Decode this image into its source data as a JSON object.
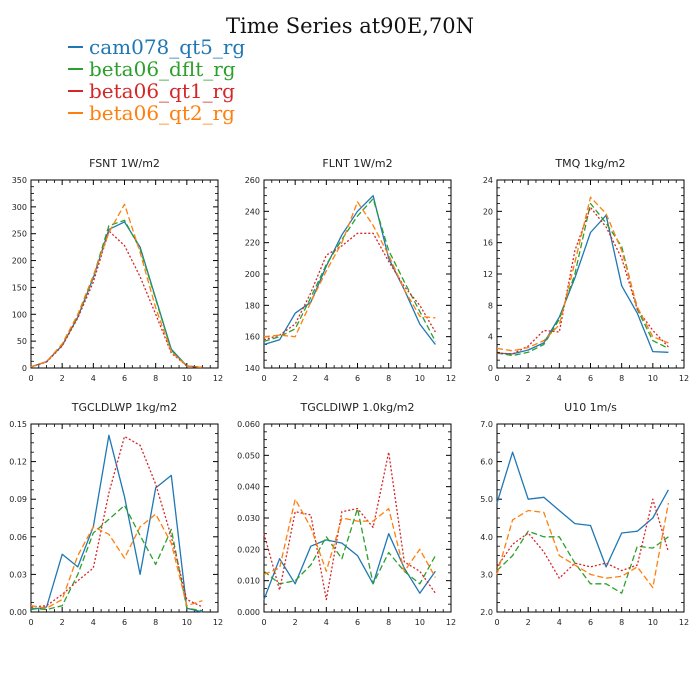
{
  "title": "Time Series at90E,70N",
  "legend": [
    {
      "name": "cam078_qt5_rg",
      "color": "#1f77b4",
      "dash": ""
    },
    {
      "name": "beta06_dflt_rg",
      "color": "#2ca02c",
      "dash": "6,3"
    },
    {
      "name": "beta06_qt1_rg",
      "color": "#d62728",
      "dash": "2,2"
    },
    {
      "name": "beta06_qt2_rg",
      "color": "#ff7f0e",
      "dash": "6,3"
    }
  ],
  "chart_data": [
    {
      "type": "line",
      "title": "FSNT  1W/m2",
      "x": [
        0,
        1,
        2,
        3,
        4,
        5,
        6,
        7,
        8,
        9,
        10,
        11
      ],
      "xlim": [
        0,
        12
      ],
      "xticks": [
        0,
        2,
        4,
        6,
        8,
        10,
        12
      ],
      "xtick_labels": [
        "0",
        "2",
        "4",
        "6",
        "8",
        "10",
        "12"
      ],
      "ylim": [
        0,
        350
      ],
      "yticks": [
        0,
        50,
        100,
        150,
        200,
        250,
        300,
        350
      ],
      "ytick_labels": [
        "0",
        "50",
        "100",
        "150",
        "200",
        "250",
        "300",
        "350"
      ],
      "series": [
        {
          "name": "cam078_qt5_rg",
          "values": [
            2,
            12,
            42,
            95,
            168,
            258,
            272,
            225,
            130,
            35,
            4,
            1
          ]
        },
        {
          "name": "beta06_dflt_rg",
          "values": [
            2,
            12,
            43,
            96,
            170,
            265,
            275,
            222,
            128,
            33,
            4,
            1
          ]
        },
        {
          "name": "beta06_qt1_rg",
          "values": [
            2,
            11,
            41,
            93,
            160,
            255,
            228,
            170,
            100,
            28,
            4,
            1
          ]
        },
        {
          "name": "beta06_qt2_rg",
          "values": [
            2,
            12,
            45,
            100,
            172,
            252,
            305,
            215,
            112,
            30,
            4,
            1
          ]
        }
      ]
    },
    {
      "type": "line",
      "title": "FLNT  1W/m2",
      "x": [
        0,
        1,
        2,
        3,
        4,
        5,
        6,
        7,
        8,
        9,
        10,
        11
      ],
      "xlim": [
        0,
        12
      ],
      "xticks": [
        0,
        2,
        4,
        6,
        8,
        10,
        12
      ],
      "xtick_labels": [
        "0",
        "2",
        "4",
        "6",
        "8",
        "10",
        "12"
      ],
      "ylim": [
        140,
        260
      ],
      "yticks": [
        140,
        160,
        180,
        200,
        220,
        240,
        260
      ],
      "ytick_labels": [
        "140",
        "160",
        "180",
        "200",
        "220",
        "240",
        "260"
      ],
      "series": [
        {
          "name": "cam078_qt5_rg",
          "values": [
            155,
            158,
            175,
            182,
            205,
            225,
            240,
            250,
            210,
            190,
            168,
            155
          ]
        },
        {
          "name": "beta06_dflt_rg",
          "values": [
            157,
            160,
            165,
            185,
            206,
            222,
            237,
            248,
            215,
            195,
            176,
            157
          ]
        },
        {
          "name": "beta06_qt1_rg",
          "values": [
            158,
            161,
            168,
            188,
            212,
            218,
            226,
            226,
            208,
            192,
            180,
            163
          ]
        },
        {
          "name": "beta06_qt2_rg",
          "values": [
            160,
            161,
            160,
            182,
            202,
            220,
            246,
            231,
            212,
            190,
            173,
            172
          ]
        }
      ]
    },
    {
      "type": "line",
      "title": "TMQ  1kg/m2",
      "x": [
        0,
        1,
        2,
        3,
        4,
        5,
        6,
        7,
        8,
        9,
        10,
        11
      ],
      "xlim": [
        0,
        12
      ],
      "xticks": [
        0,
        2,
        4,
        6,
        8,
        10,
        12
      ],
      "xtick_labels": [
        "0",
        "2",
        "4",
        "6",
        "8",
        "10",
        "12"
      ],
      "ylim": [
        0,
        24
      ],
      "yticks": [
        0,
        4,
        8,
        12,
        16,
        20,
        24
      ],
      "ytick_labels": [
        "0",
        "4",
        "8",
        "12",
        "16",
        "20",
        "24"
      ],
      "series": [
        {
          "name": "cam078_qt5_rg",
          "values": [
            1.9,
            1.8,
            2.3,
            3.2,
            6.5,
            11.5,
            17.3,
            19.5,
            10.5,
            7.0,
            2.1,
            2.0
          ]
        },
        {
          "name": "beta06_dflt_rg",
          "values": [
            1.9,
            1.6,
            2.0,
            3.0,
            6.2,
            12.0,
            21.0,
            18.5,
            15.5,
            7.5,
            3.5,
            2.5
          ]
        },
        {
          "name": "beta06_qt1_rg",
          "values": [
            1.9,
            1.8,
            2.8,
            4.8,
            4.6,
            15.0,
            20.5,
            18.0,
            14.0,
            7.5,
            4.8,
            2.7
          ]
        },
        {
          "name": "beta06_qt2_rg",
          "values": [
            2.5,
            2.2,
            2.6,
            3.5,
            5.5,
            13.5,
            21.8,
            19.7,
            15.0,
            7.8,
            4.0,
            3.2
          ]
        }
      ]
    },
    {
      "type": "line",
      "title": "TGCLDLWP  1kg/m2",
      "x": [
        0,
        1,
        2,
        3,
        4,
        5,
        6,
        7,
        8,
        9,
        10,
        11
      ],
      "xlim": [
        0,
        12
      ],
      "xticks": [
        0,
        2,
        4,
        6,
        8,
        10,
        12
      ],
      "xtick_labels": [
        "0",
        "2",
        "4",
        "6",
        "8",
        "10",
        "12"
      ],
      "ylim": [
        0,
        0.15
      ],
      "yticks": [
        0,
        0.03,
        0.06,
        0.09,
        0.12,
        0.15
      ],
      "ytick_labels": [
        "0.00",
        "0.03",
        "0.06",
        "0.09",
        "0.12",
        "0.15"
      ],
      "series": [
        {
          "name": "cam078_qt5_rg",
          "values": [
            0.002,
            0.004,
            0.046,
            0.036,
            0.068,
            0.141,
            0.092,
            0.03,
            0.099,
            0.109,
            0.003,
            0.0
          ]
        },
        {
          "name": "beta06_dflt_rg",
          "values": [
            0.003,
            0.002,
            0.005,
            0.03,
            0.063,
            0.074,
            0.085,
            0.061,
            0.038,
            0.066,
            0.003,
            0.001
          ]
        },
        {
          "name": "beta06_qt1_rg",
          "values": [
            0.004,
            0.005,
            0.014,
            0.025,
            0.035,
            0.095,
            0.14,
            0.133,
            0.102,
            0.06,
            0.01,
            0.004
          ]
        },
        {
          "name": "beta06_qt2_rg",
          "values": [
            0.005,
            0.003,
            0.01,
            0.045,
            0.068,
            0.062,
            0.043,
            0.068,
            0.078,
            0.055,
            0.005,
            0.009
          ]
        }
      ]
    },
    {
      "type": "line",
      "title": "TGCLDIWP  1.0kg/m2",
      "x": [
        0,
        1,
        2,
        3,
        4,
        5,
        6,
        7,
        8,
        9,
        10,
        11
      ],
      "xlim": [
        0,
        12
      ],
      "xticks": [
        0,
        2,
        4,
        6,
        8,
        10,
        12
      ],
      "xtick_labels": [
        "0",
        "2",
        "4",
        "6",
        "8",
        "10",
        "12"
      ],
      "ylim": [
        0,
        0.06
      ],
      "yticks": [
        0,
        0.01,
        0.02,
        0.03,
        0.04,
        0.05,
        0.06
      ],
      "ytick_labels": [
        "0.000",
        "0.010",
        "0.020",
        "0.030",
        "0.040",
        "0.050",
        "0.060"
      ],
      "series": [
        {
          "name": "cam078_qt5_rg",
          "values": [
            0.004,
            0.017,
            0.009,
            0.021,
            0.023,
            0.022,
            0.018,
            0.009,
            0.025,
            0.014,
            0.006,
            0.013
          ]
        },
        {
          "name": "beta06_dflt_rg",
          "values": [
            0.013,
            0.009,
            0.01,
            0.015,
            0.024,
            0.017,
            0.033,
            0.009,
            0.019,
            0.013,
            0.009,
            0.018
          ]
        },
        {
          "name": "beta06_qt1_rg",
          "values": [
            0.025,
            0.007,
            0.032,
            0.031,
            0.004,
            0.032,
            0.033,
            0.027,
            0.051,
            0.016,
            0.013,
            0.006
          ]
        },
        {
          "name": "beta06_qt2_rg",
          "values": [
            0.012,
            0.014,
            0.036,
            0.027,
            0.013,
            0.03,
            0.029,
            0.029,
            0.033,
            0.013,
            0.02,
            0.011
          ]
        }
      ]
    },
    {
      "type": "line",
      "title": "U10  1m/s",
      "x": [
        0,
        1,
        2,
        3,
        4,
        5,
        6,
        7,
        8,
        9,
        10,
        11
      ],
      "xlim": [
        0,
        12
      ],
      "xticks": [
        0,
        2,
        4,
        6,
        8,
        10,
        12
      ],
      "xtick_labels": [
        "0",
        "2",
        "4",
        "6",
        "8",
        "10",
        "12"
      ],
      "ylim": [
        2,
        7
      ],
      "yticks": [
        2,
        3,
        4,
        5,
        6,
        7
      ],
      "ytick_labels": [
        "2.0",
        "3.0",
        "4.0",
        "5.0",
        "6.0",
        "7.0"
      ],
      "series": [
        {
          "name": "cam078_qt5_rg",
          "values": [
            4.9,
            6.25,
            5.0,
            5.05,
            4.7,
            4.35,
            4.3,
            3.2,
            4.1,
            4.15,
            4.5,
            5.25
          ]
        },
        {
          "name": "beta06_dflt_rg",
          "values": [
            3.1,
            3.5,
            4.15,
            4.0,
            4.0,
            3.3,
            2.75,
            2.75,
            2.5,
            3.75,
            3.7,
            4.0
          ]
        },
        {
          "name": "beta06_qt1_rg",
          "values": [
            3.2,
            3.8,
            4.1,
            3.6,
            2.9,
            3.3,
            3.2,
            3.3,
            3.1,
            3.25,
            5.0,
            3.6
          ]
        },
        {
          "name": "beta06_qt2_rg",
          "values": [
            3.0,
            4.45,
            4.7,
            4.65,
            3.5,
            3.25,
            3.0,
            2.9,
            2.95,
            3.2,
            2.65,
            4.9
          ]
        }
      ]
    }
  ]
}
